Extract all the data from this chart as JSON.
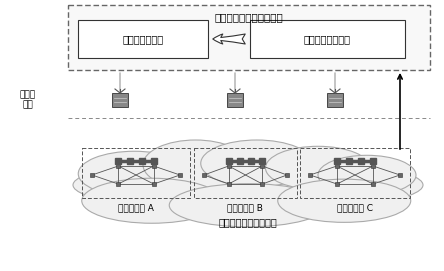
{
  "title_global": "软件定义网络全局控制器",
  "box_local_ctrl": "本地控制管理器",
  "box_nonrt": "非实时流量调度器",
  "label_local_ctrl": "本地控\n制器",
  "label_domain_A": "本地管理域 A",
  "label_domain_B": "本地管理域 B",
  "label_domain_C": "本地管理域 C",
  "label_data_plane": "软件定义网络数据平面",
  "bg_color": "#ffffff",
  "text_color": "#000000",
  "font_size": 7,
  "fig_width": 4.44,
  "fig_height": 2.71
}
